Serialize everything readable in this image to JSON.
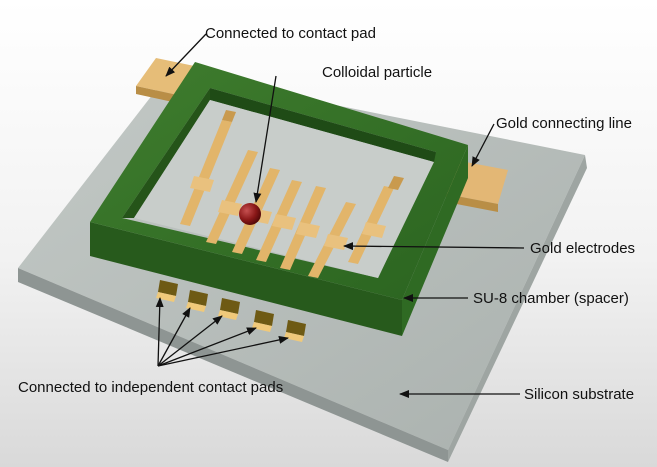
{
  "labels": {
    "contact_pad": "Connected to contact pad",
    "colloidal_particle": "Colloidal particle",
    "gold_line": "Gold connecting line",
    "gold_electrodes": "Gold electrodes",
    "su8_chamber": "SU-8 chamber (spacer)",
    "independent_pads": "Connected to independent contact pads",
    "silicon_substrate": "Silicon substrate"
  },
  "colors": {
    "substrate_top": "#b9c0bd",
    "substrate_side": "#8e9593",
    "su8_green": "#2e6a22",
    "gold": "#e2b56a",
    "particle": "#8a1818"
  },
  "icons": {
    "arrow": "arrowhead",
    "electrode": "gold-electrode",
    "particle": "colloidal-particle"
  }
}
